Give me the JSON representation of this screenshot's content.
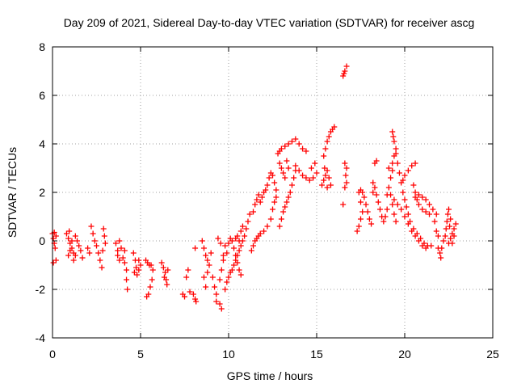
{
  "chart_data": {
    "type": "scatter",
    "title": "Day 209 of 2021, Sidereal Day-to-day VTEC variation (SDTVAR) for receiver ascg",
    "xlabel": "GPS time / hours",
    "ylabel": "SDTVAR / TECUs",
    "xlim": [
      0,
      25
    ],
    "ylim": [
      -4,
      8
    ],
    "xticks": [
      "0",
      "5",
      "10",
      "15",
      "20",
      "25"
    ],
    "yticks": [
      "-4",
      "-2",
      "0",
      "2",
      "4",
      "6",
      "8"
    ],
    "grid": true,
    "marker": "+",
    "color": "#ff0000",
    "series": [
      {
        "name": "SDTVAR",
        "points": [
          [
            0.0,
            0.3
          ],
          [
            0.05,
            0.1
          ],
          [
            0.1,
            -0.1
          ],
          [
            0.15,
            -0.3
          ],
          [
            0.2,
            -0.8
          ],
          [
            0.05,
            -0.9
          ],
          [
            0.1,
            0.35
          ],
          [
            0.2,
            0.2
          ],
          [
            0.8,
            0.3
          ],
          [
            0.9,
            0.1
          ],
          [
            1.0,
            -0.1
          ],
          [
            1.1,
            -0.3
          ],
          [
            1.2,
            -0.5
          ],
          [
            0.9,
            -0.6
          ],
          [
            1.0,
            -0.4
          ],
          [
            1.1,
            0.0
          ],
          [
            1.3,
            0.2
          ],
          [
            1.4,
            0.0
          ],
          [
            1.5,
            -0.2
          ],
          [
            1.6,
            -0.4
          ],
          [
            1.7,
            -0.7
          ],
          [
            1.2,
            -0.8
          ],
          [
            1.3,
            -0.6
          ],
          [
            0.95,
            0.4
          ],
          [
            2.0,
            -0.3
          ],
          [
            2.1,
            -0.5
          ],
          [
            2.2,
            0.6
          ],
          [
            2.3,
            0.3
          ],
          [
            2.4,
            0.0
          ],
          [
            2.5,
            -0.2
          ],
          [
            2.6,
            -0.5
          ],
          [
            2.7,
            -0.8
          ],
          [
            2.8,
            -1.1
          ],
          [
            2.9,
            0.5
          ],
          [
            2.95,
            0.2
          ],
          [
            3.0,
            -0.1
          ],
          [
            2.85,
            -0.4
          ],
          [
            3.6,
            -0.1
          ],
          [
            3.7,
            -0.4
          ],
          [
            3.8,
            -0.8
          ],
          [
            3.7,
            -0.6
          ],
          [
            3.8,
            0.0
          ],
          [
            3.9,
            -0.3
          ],
          [
            4.1,
            -0.9
          ],
          [
            4.2,
            -1.2
          ],
          [
            4.2,
            -1.6
          ],
          [
            4.25,
            -2.0
          ],
          [
            4.0,
            -0.7
          ],
          [
            4.1,
            -0.4
          ],
          [
            4.6,
            -0.5
          ],
          [
            4.7,
            -0.8
          ],
          [
            4.75,
            -1.1
          ],
          [
            4.8,
            -1.4
          ],
          [
            4.9,
            -1.2
          ],
          [
            5.0,
            -1.0
          ],
          [
            4.65,
            -1.3
          ],
          [
            4.9,
            -0.8
          ],
          [
            5.3,
            -0.8
          ],
          [
            5.4,
            -0.9
          ],
          [
            5.5,
            -1.0
          ],
          [
            5.6,
            -1.0
          ],
          [
            5.7,
            -1.2
          ],
          [
            5.35,
            -2.3
          ],
          [
            5.45,
            -2.2
          ],
          [
            5.55,
            -1.9
          ],
          [
            5.65,
            -1.6
          ],
          [
            6.2,
            -0.9
          ],
          [
            6.3,
            -1.1
          ],
          [
            6.4,
            -1.3
          ],
          [
            6.45,
            -1.6
          ],
          [
            6.5,
            -1.8
          ],
          [
            6.35,
            -1.5
          ],
          [
            6.55,
            -1.2
          ],
          [
            7.4,
            -2.2
          ],
          [
            7.5,
            -2.3
          ],
          [
            7.6,
            -1.5
          ],
          [
            7.7,
            -1.2
          ],
          [
            7.8,
            -2.1
          ],
          [
            8.0,
            -2.2
          ],
          [
            8.1,
            -2.4
          ],
          [
            8.15,
            -2.5
          ],
          [
            8.1,
            -0.3
          ],
          [
            8.5,
            0.0
          ],
          [
            8.6,
            -0.3
          ],
          [
            8.7,
            -0.6
          ],
          [
            8.8,
            -0.8
          ],
          [
            8.9,
            -1.0
          ],
          [
            8.6,
            -1.5
          ],
          [
            8.7,
            -1.9
          ],
          [
            8.8,
            -1.3
          ],
          [
            9.0,
            -0.5
          ],
          [
            9.1,
            -1.5
          ],
          [
            9.2,
            -1.9
          ],
          [
            9.3,
            -2.2
          ],
          [
            9.3,
            -2.5
          ],
          [
            9.5,
            -2.6
          ],
          [
            9.6,
            -2.8
          ],
          [
            9.5,
            -1.6
          ],
          [
            9.6,
            -1.2
          ],
          [
            9.7,
            -0.8
          ],
          [
            9.7,
            -0.6
          ],
          [
            9.8,
            -0.2
          ],
          [
            9.4,
            0.1
          ],
          [
            9.55,
            -0.1
          ],
          [
            9.8,
            -2.0
          ],
          [
            9.9,
            -1.7
          ],
          [
            10.0,
            -1.5
          ],
          [
            10.1,
            -1.3
          ],
          [
            10.2,
            -1.2
          ],
          [
            10.3,
            -1.0
          ],
          [
            10.4,
            -0.8
          ],
          [
            10.5,
            -0.6
          ],
          [
            10.6,
            -0.4
          ],
          [
            10.7,
            -0.2
          ],
          [
            10.8,
            0.0
          ],
          [
            10.9,
            0.2
          ],
          [
            11.0,
            0.5
          ],
          [
            11.1,
            0.8
          ],
          [
            11.2,
            1.1
          ],
          [
            9.9,
            -0.5
          ],
          [
            10.0,
            -0.1
          ],
          [
            10.1,
            0.1
          ],
          [
            10.2,
            0.0
          ],
          [
            10.3,
            -0.3
          ],
          [
            10.4,
            -0.6
          ],
          [
            10.5,
            -0.9
          ],
          [
            10.6,
            -1.2
          ],
          [
            10.7,
            -1.4
          ],
          [
            10.4,
            0.1
          ],
          [
            10.5,
            0.2
          ],
          [
            10.6,
            0.0
          ],
          [
            10.7,
            0.4
          ],
          [
            10.8,
            0.6
          ],
          [
            11.3,
            -0.4
          ],
          [
            11.4,
            -0.2
          ],
          [
            11.5,
            0.0
          ],
          [
            11.6,
            0.1
          ],
          [
            11.7,
            0.2
          ],
          [
            11.8,
            0.3
          ],
          [
            12.0,
            0.4
          ],
          [
            12.2,
            0.6
          ],
          [
            12.4,
            0.9
          ],
          [
            12.5,
            1.3
          ],
          [
            12.6,
            1.6
          ],
          [
            12.7,
            1.8
          ],
          [
            11.4,
            1.2
          ],
          [
            11.5,
            1.5
          ],
          [
            11.6,
            1.7
          ],
          [
            11.7,
            1.9
          ],
          [
            11.8,
            1.6
          ],
          [
            11.9,
            1.8
          ],
          [
            12.0,
            2.0
          ],
          [
            12.1,
            2.1
          ],
          [
            12.2,
            2.3
          ],
          [
            12.3,
            2.6
          ],
          [
            12.4,
            2.8
          ],
          [
            12.5,
            2.7
          ],
          [
            12.6,
            2.4
          ],
          [
            12.7,
            2.1
          ],
          [
            12.9,
            0.6
          ],
          [
            13.0,
            0.9
          ],
          [
            13.1,
            1.2
          ],
          [
            13.2,
            1.4
          ],
          [
            13.3,
            1.6
          ],
          [
            13.4,
            1.8
          ],
          [
            13.5,
            2.0
          ],
          [
            13.6,
            2.3
          ],
          [
            13.7,
            2.6
          ],
          [
            13.8,
            2.9
          ],
          [
            12.9,
            3.2
          ],
          [
            13.0,
            3.0
          ],
          [
            13.1,
            2.8
          ],
          [
            13.2,
            2.6
          ],
          [
            13.3,
            3.3
          ],
          [
            13.4,
            3.0
          ],
          [
            12.8,
            3.6
          ],
          [
            12.9,
            3.7
          ],
          [
            13.0,
            3.8
          ],
          [
            13.2,
            3.9
          ],
          [
            13.4,
            4.0
          ],
          [
            13.6,
            4.1
          ],
          [
            13.8,
            4.2
          ],
          [
            14.0,
            4.0
          ],
          [
            14.2,
            3.8
          ],
          [
            14.4,
            3.7
          ],
          [
            13.8,
            3.1
          ],
          [
            14.0,
            2.9
          ],
          [
            14.2,
            2.7
          ],
          [
            14.4,
            2.6
          ],
          [
            14.6,
            2.5
          ],
          [
            14.8,
            2.6
          ],
          [
            15.0,
            2.8
          ],
          [
            14.7,
            3.0
          ],
          [
            14.9,
            3.2
          ],
          [
            15.3,
            2.3
          ],
          [
            15.4,
            2.5
          ],
          [
            15.5,
            2.7
          ],
          [
            15.6,
            2.9
          ],
          [
            15.7,
            2.6
          ],
          [
            15.8,
            2.3
          ],
          [
            15.4,
            3.5
          ],
          [
            15.5,
            3.8
          ],
          [
            15.6,
            4.1
          ],
          [
            15.7,
            4.3
          ],
          [
            15.8,
            4.5
          ],
          [
            15.9,
            4.6
          ],
          [
            16.0,
            4.7
          ],
          [
            15.45,
            3.0
          ],
          [
            15.6,
            2.2
          ],
          [
            16.5,
            6.8
          ],
          [
            16.6,
            7.0
          ],
          [
            16.7,
            7.2
          ],
          [
            16.55,
            6.9
          ],
          [
            16.5,
            1.5
          ],
          [
            16.6,
            2.2
          ],
          [
            16.65,
            2.7
          ],
          [
            16.7,
            3.0
          ],
          [
            16.6,
            3.2
          ],
          [
            16.7,
            2.4
          ],
          [
            17.3,
            0.4
          ],
          [
            17.4,
            0.6
          ],
          [
            17.5,
            0.9
          ],
          [
            17.6,
            1.2
          ],
          [
            17.4,
            2.0
          ],
          [
            17.5,
            2.1
          ],
          [
            17.6,
            2.0
          ],
          [
            17.7,
            1.8
          ],
          [
            17.8,
            1.5
          ],
          [
            17.9,
            1.2
          ],
          [
            18.0,
            0.9
          ],
          [
            18.1,
            0.7
          ],
          [
            17.5,
            1.6
          ],
          [
            18.2,
            2.0
          ],
          [
            18.3,
            2.2
          ],
          [
            18.4,
            1.9
          ],
          [
            18.5,
            1.6
          ],
          [
            18.6,
            1.3
          ],
          [
            18.7,
            1.0
          ],
          [
            18.8,
            0.8
          ],
          [
            18.3,
            3.2
          ],
          [
            18.4,
            3.3
          ],
          [
            18.2,
            2.4
          ],
          [
            18.9,
            1.0
          ],
          [
            19.0,
            1.3
          ],
          [
            19.0,
            1.9
          ],
          [
            19.1,
            2.2
          ],
          [
            19.2,
            2.6
          ],
          [
            19.3,
            2.9
          ],
          [
            19.1,
            3.0
          ],
          [
            19.3,
            1.5
          ],
          [
            19.4,
            1.1
          ],
          [
            19.5,
            0.8
          ],
          [
            19.3,
            3.2
          ],
          [
            19.4,
            3.5
          ],
          [
            19.5,
            3.8
          ],
          [
            19.3,
            4.5
          ],
          [
            19.35,
            4.3
          ],
          [
            19.4,
            4.1
          ],
          [
            19.5,
            3.6
          ],
          [
            19.6,
            3.2
          ],
          [
            19.7,
            2.8
          ],
          [
            19.8,
            2.4
          ],
          [
            19.9,
            2.0
          ],
          [
            20.0,
            1.7
          ],
          [
            20.1,
            1.4
          ],
          [
            20.2,
            1.1
          ],
          [
            20.3,
            0.8
          ],
          [
            20.5,
            0.5
          ],
          [
            20.7,
            0.3
          ],
          [
            20.9,
            0.1
          ],
          [
            21.1,
            -0.1
          ],
          [
            21.3,
            -0.2
          ],
          [
            21.5,
            -0.2
          ],
          [
            19.2,
            1.9
          ],
          [
            19.4,
            1.7
          ],
          [
            19.6,
            1.5
          ],
          [
            19.8,
            1.3
          ],
          [
            20.0,
            1.0
          ],
          [
            20.2,
            0.7
          ],
          [
            20.4,
            0.4
          ],
          [
            20.6,
            0.2
          ],
          [
            20.8,
            0.0
          ],
          [
            21.0,
            -0.2
          ],
          [
            21.2,
            -0.3
          ],
          [
            19.9,
            2.5
          ],
          [
            20.0,
            2.7
          ],
          [
            20.2,
            2.9
          ],
          [
            20.4,
            3.1
          ],
          [
            20.6,
            3.2
          ],
          [
            20.5,
            2.3
          ],
          [
            20.6,
            2.0
          ],
          [
            20.7,
            1.7
          ],
          [
            20.8,
            1.5
          ],
          [
            21.0,
            1.3
          ],
          [
            21.2,
            1.2
          ],
          [
            21.4,
            1.1
          ],
          [
            20.6,
            1.8
          ],
          [
            20.8,
            1.9
          ],
          [
            21.0,
            1.8
          ],
          [
            21.2,
            1.7
          ],
          [
            21.4,
            1.5
          ],
          [
            21.6,
            1.3
          ],
          [
            21.8,
            1.1
          ],
          [
            21.7,
            0.8
          ],
          [
            21.8,
            0.4
          ],
          [
            21.9,
            0.2
          ],
          [
            21.9,
            -0.3
          ],
          [
            22.0,
            -0.5
          ],
          [
            22.05,
            -0.7
          ],
          [
            22.1,
            -0.3
          ],
          [
            22.2,
            0.0
          ],
          [
            22.3,
            0.2
          ],
          [
            22.35,
            0.5
          ],
          [
            22.4,
            0.8
          ],
          [
            22.45,
            1.1
          ],
          [
            22.5,
            1.3
          ],
          [
            22.55,
            0.6
          ],
          [
            22.5,
            -0.1
          ],
          [
            22.6,
            0.1
          ],
          [
            22.7,
            0.3
          ],
          [
            22.8,
            0.5
          ],
          [
            22.9,
            0.7
          ],
          [
            22.7,
            -0.1
          ],
          [
            22.8,
            0.2
          ],
          [
            22.6,
            0.9
          ]
        ]
      }
    ]
  }
}
